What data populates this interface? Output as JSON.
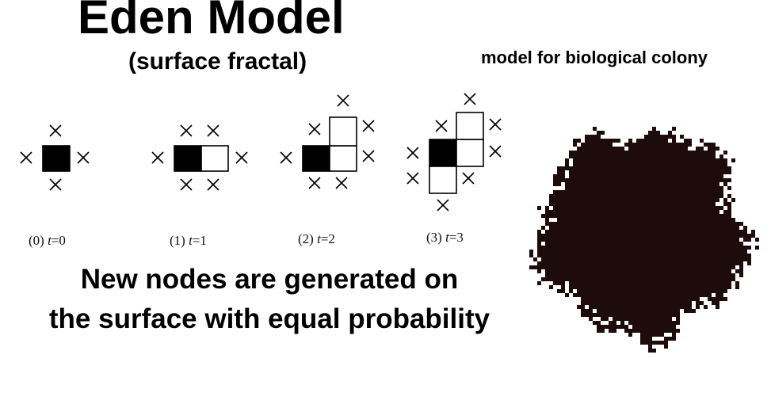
{
  "title": "Eden Model",
  "subtitle": "(surface fractal)",
  "colony_caption": "model for biological colony",
  "stages": [
    {
      "index": "(0)",
      "variable": "t",
      "equals": "=0"
    },
    {
      "index": "(1)",
      "variable": "t",
      "equals": "=1"
    },
    {
      "index": "(2)",
      "variable": "t",
      "equals": "=2"
    },
    {
      "index": "(3)",
      "variable": "t",
      "equals": "=3"
    }
  ],
  "description_line1": "New nodes are generated on",
  "description_line2": "the surface with equal probability",
  "colors": {
    "occupied_cell": "#000000",
    "new_cell_border": "#000000",
    "colony": "#1e0c0c"
  }
}
